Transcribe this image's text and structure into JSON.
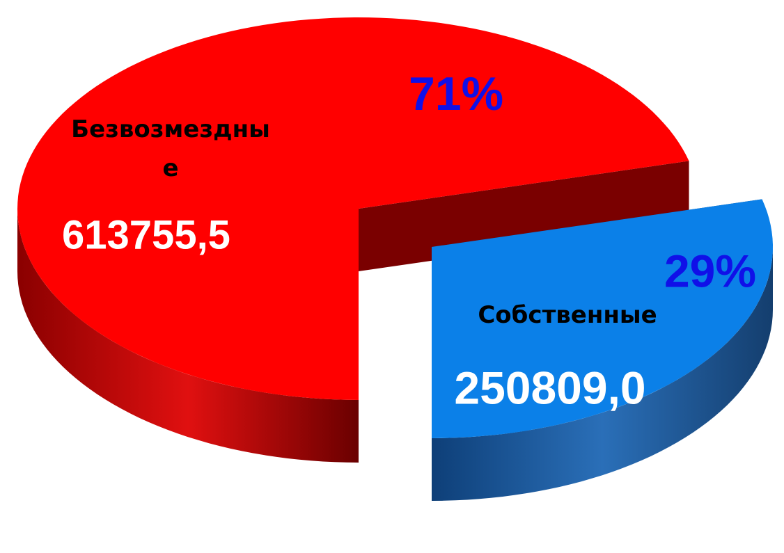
{
  "chart_data": {
    "type": "pie",
    "categories": [
      "Безвозмездные",
      "Собственные"
    ],
    "values": [
      613755.5,
      250809.0
    ],
    "value_labels": [
      "613755,5",
      "250809,0"
    ],
    "percent_labels": [
      "71%",
      "29%"
    ],
    "colors": [
      "#ff0000",
      "#0b80e8"
    ]
  }
}
